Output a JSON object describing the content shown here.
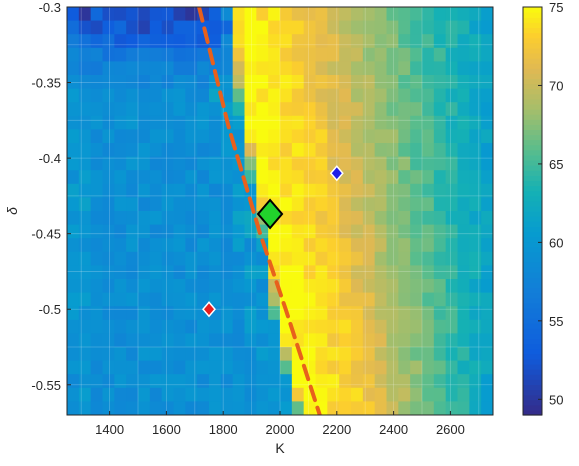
{
  "chart_data": {
    "type": "heatmap",
    "title": "",
    "xlabel": "K",
    "ylabel": "δ",
    "xlim": [
      1250,
      2750
    ],
    "ylim": [
      -0.57,
      -0.3
    ],
    "xticks": [
      1400,
      1600,
      1800,
      2000,
      2200,
      2400,
      2600
    ],
    "yticks": [
      -0.3,
      -0.35,
      -0.4,
      -0.45,
      -0.5,
      -0.55
    ],
    "ytick_labels": [
      "-0.3",
      "-0.35",
      "-0.4",
      "-0.45",
      "-0.5",
      "-0.55"
    ],
    "colorbar": {
      "range": [
        49,
        75
      ],
      "ticks": [
        50,
        55,
        60,
        65,
        70,
        75
      ],
      "colormap": "parula"
    },
    "contour_profile": {
      "description_values_by_row_delta": [
        -0.3,
        -0.35,
        -0.4,
        -0.45,
        -0.5,
        -0.55,
        -0.57
      ],
      "ridge_start_K": [
        1850,
        1870,
        1910,
        1965,
        2000,
        2060,
        2090
      ],
      "ridge_end_K": [
        2080,
        2120,
        2160,
        2210,
        2260,
        2300,
        2320
      ],
      "peak_value": 75,
      "left_plateau_value": 59,
      "right_edge_value": 64
    },
    "dashed_boundary": {
      "color": "#e8601c",
      "points": [
        [
          1715,
          -0.3
        ],
        [
          1820,
          -0.38
        ],
        [
          1930,
          -0.45
        ],
        [
          2020,
          -0.5
        ],
        [
          2140,
          -0.57
        ]
      ]
    },
    "markers": [
      {
        "K": 1965,
        "delta": -0.437,
        "color": "#22d32c",
        "size": "large"
      },
      {
        "K": 2200,
        "delta": -0.41,
        "color": "#1e1ee8",
        "size": "small"
      },
      {
        "K": 1750,
        "delta": -0.5,
        "color": "#e81e1e",
        "size": "small"
      }
    ],
    "grid": true,
    "legend": "none"
  }
}
